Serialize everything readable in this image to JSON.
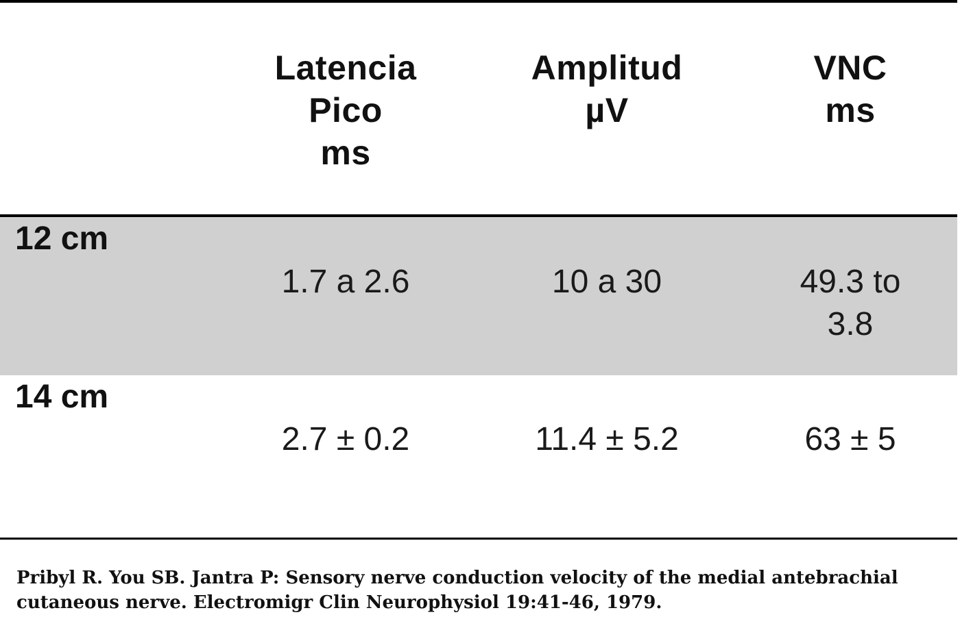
{
  "table": {
    "headers": {
      "latencia": "Latencia\nPico\nms",
      "amplitud": "Amplitud\nµV",
      "vnc": "VNC\nms"
    },
    "rows": [
      {
        "label": "12 cm",
        "latencia": "1.7 a 2.6",
        "amplitud": "10 a 30",
        "vnc": "49.3 to\n3.8"
      },
      {
        "label": "14 cm",
        "latencia": "2.7 ± 0.2",
        "amplitud": "11.4 ± 5.2",
        "vnc": "63 ± 5"
      }
    ]
  },
  "citation": "Pribyl R. You SB. Jantra P: Sensory nerve conduction velocity of the medial antebrachial cutaneous nerve. Electromigr Clin Neurophysiol 19:41-46, 1979.",
  "colors": {
    "shaded_row": "#d0d0d0",
    "rules": "#000000"
  }
}
